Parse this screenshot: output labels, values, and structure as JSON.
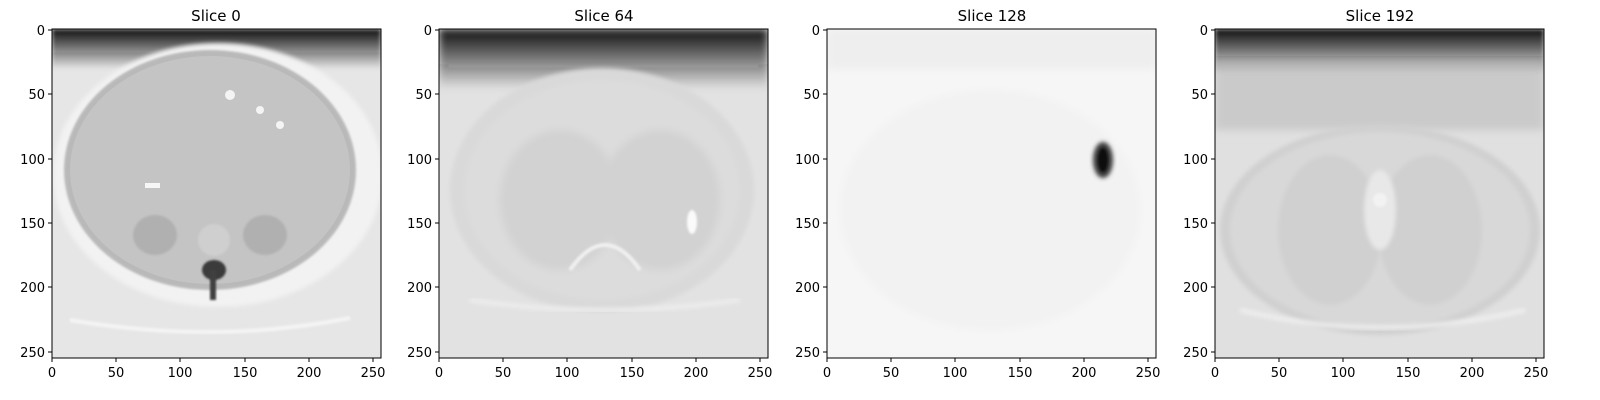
{
  "figure": {
    "panels": [
      {
        "title": "Slice 0"
      },
      {
        "title": "Slice 64"
      },
      {
        "title": "Slice 128"
      },
      {
        "title": "Slice 192"
      }
    ],
    "x_ticks": [
      "0",
      "50",
      "100",
      "150",
      "200",
      "250"
    ],
    "y_ticks": [
      "0",
      "50",
      "100",
      "150",
      "200",
      "250"
    ],
    "image_size": 256,
    "colormap": "grayscale"
  }
}
